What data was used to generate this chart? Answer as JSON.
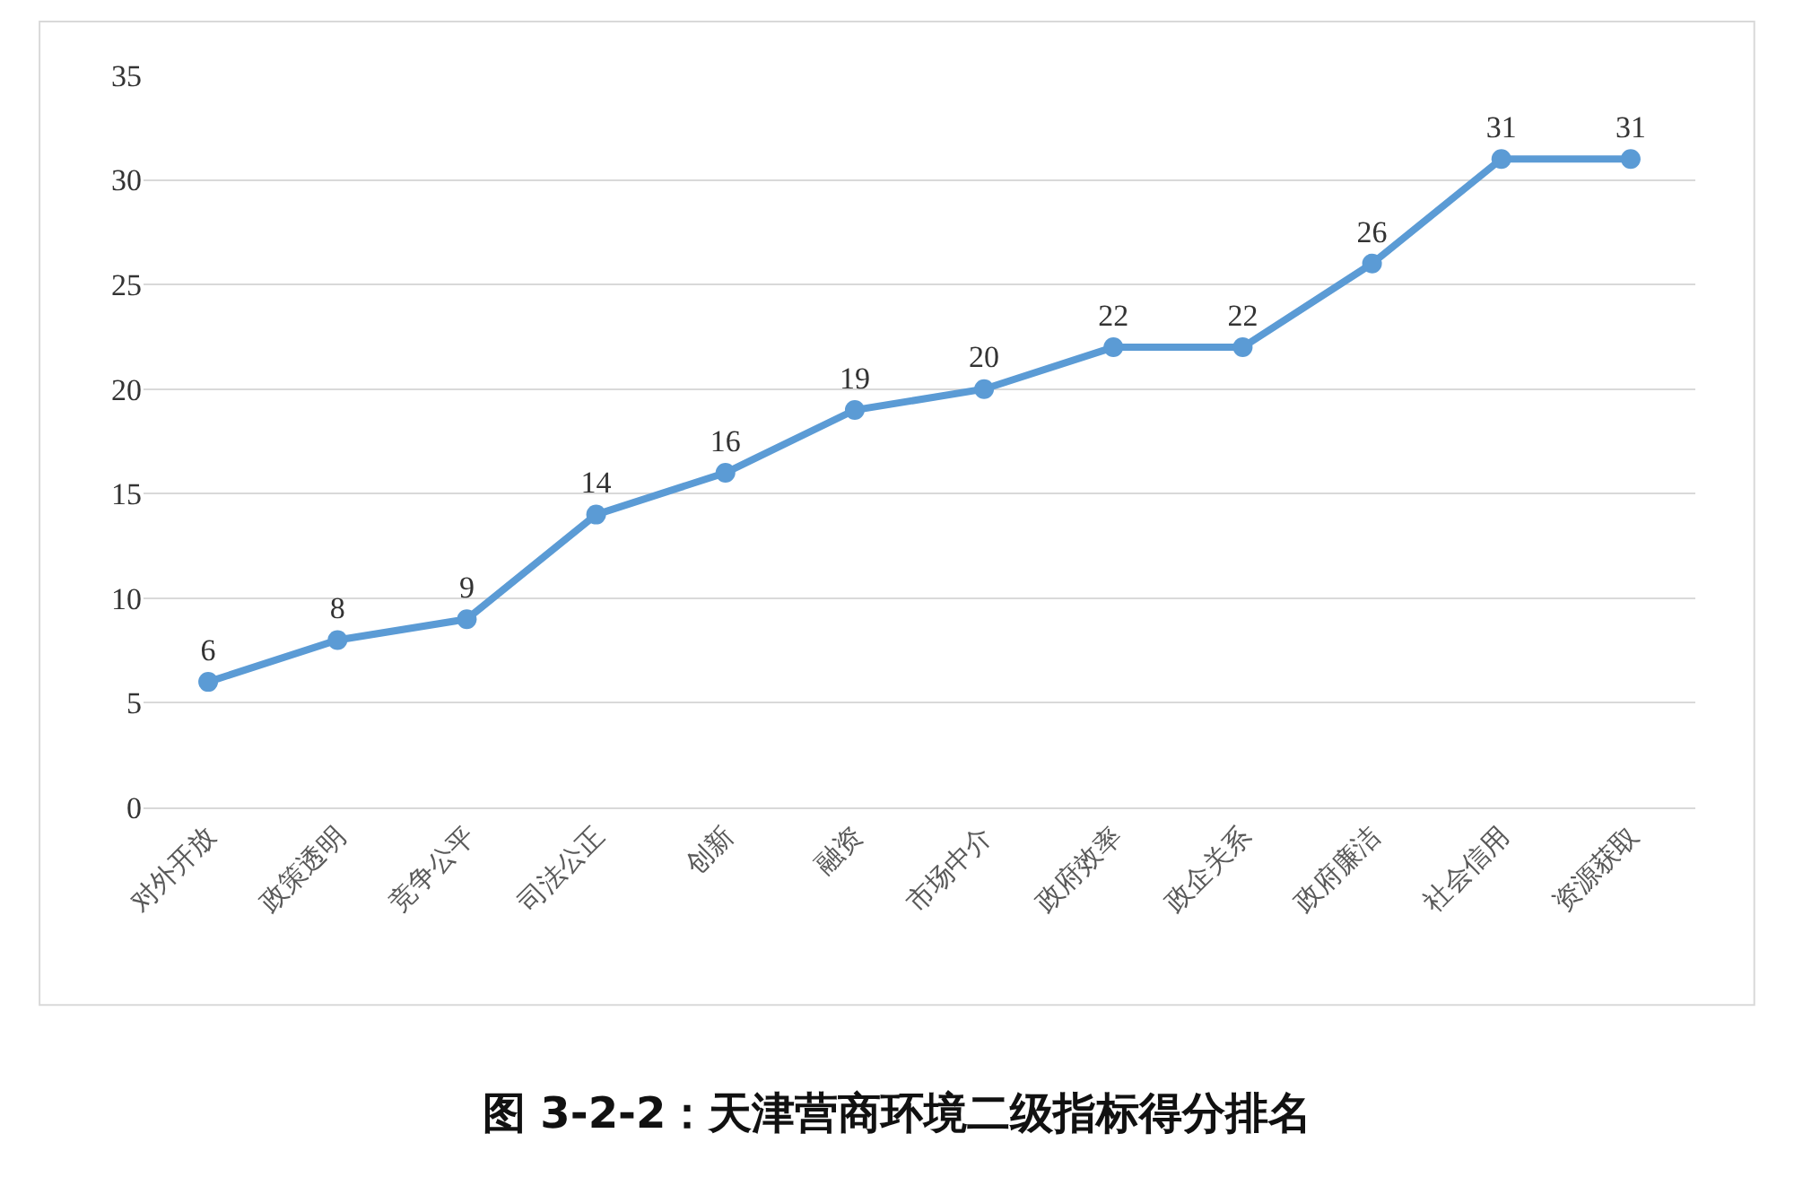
{
  "chart_data": {
    "type": "line",
    "title": "图 3-2-2：天津营商环境二级指标得分排名",
    "categories": [
      "对外开放",
      "政策透明",
      "竞争公平",
      "司法公正",
      "创新",
      "融资",
      "市场中介",
      "政府效率",
      "政企关系",
      "政府廉洁",
      "社会信用",
      "资源获取"
    ],
    "series": [
      {
        "color": "#5b9bd5",
        "values": [
          6,
          8,
          9,
          14,
          16,
          19,
          20,
          22,
          22,
          26,
          31,
          31
        ]
      }
    ],
    "ylim": [
      0,
      35
    ],
    "yticks": [
      0,
      5,
      10,
      15,
      20,
      25,
      30,
      35
    ],
    "grid": "y",
    "marker": "circle",
    "line_style": "solid",
    "data_labels": true,
    "legend": false
  }
}
